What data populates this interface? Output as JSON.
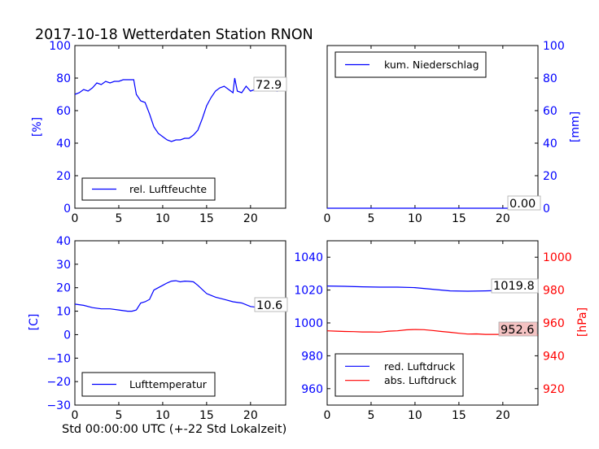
{
  "title": "2017-10-18 Wetterdaten Station RNON",
  "xlabel": "Std 00:00:00 UTC (+-22 Std Lokalzeit)",
  "colors": {
    "blue": "#0000ff",
    "red": "#ff0000",
    "black": "#000000",
    "redbox": "#f4c2c2"
  },
  "chart_data": [
    {
      "type": "line",
      "ylabel": "[%]",
      "xlim": [
        0,
        24
      ],
      "ylim": [
        0,
        100
      ],
      "xticks": [
        "0",
        "5",
        "10",
        "15",
        "20"
      ],
      "yticks": [
        "0",
        "20",
        "40",
        "60",
        "80",
        "100"
      ],
      "legend": {
        "placement": "lower-left",
        "labels": [
          "rel. Luftfeuchte"
        ]
      },
      "last_value_label": "72.9",
      "series": [
        {
          "name": "rel. Luftfeuchte",
          "color": "#0000ff",
          "x": [
            0,
            0.5,
            1,
            1.5,
            2,
            2.5,
            3,
            3.5,
            4,
            4.5,
            5,
            5.5,
            6,
            6.5,
            6.7,
            7,
            7.5,
            8,
            8.5,
            9,
            9.5,
            10,
            10.5,
            11,
            11.5,
            12,
            12.5,
            13,
            13.5,
            14,
            14.5,
            15,
            15.5,
            16,
            16.5,
            17,
            17.5,
            18,
            18.2,
            18.5,
            19,
            19.5,
            20,
            20.5,
            21,
            21.5,
            22,
            22.5,
            23,
            23.5,
            24
          ],
          "y": [
            70,
            71,
            73,
            72,
            74,
            77,
            76,
            78,
            77,
            78,
            78,
            79,
            79,
            79,
            79,
            70,
            66,
            65,
            58,
            50,
            46,
            44,
            42,
            41,
            42,
            42,
            43,
            43,
            45,
            48,
            55,
            63,
            68,
            72,
            74,
            75,
            73,
            71,
            80,
            72,
            71,
            75,
            72,
            73,
            76,
            74,
            73,
            75,
            72,
            73,
            72.9
          ]
        }
      ]
    },
    {
      "type": "line",
      "ylabel": "[mm]",
      "xlim": [
        0,
        24
      ],
      "ylim": [
        0,
        100
      ],
      "xticks": [
        "0",
        "5",
        "10",
        "15",
        "20"
      ],
      "yticks": [
        "0",
        "20",
        "40",
        "60",
        "80",
        "100"
      ],
      "legend": {
        "placement": "upper-left",
        "labels": [
          "kum. Niederschlag"
        ]
      },
      "last_value_label": "0.00",
      "series": [
        {
          "name": "kum. Niederschlag",
          "color": "#0000ff",
          "x": [
            0,
            24
          ],
          "y": [
            0,
            0
          ]
        }
      ]
    },
    {
      "type": "line",
      "ylabel": "[C]",
      "xlim": [
        0,
        24
      ],
      "ylim": [
        -30,
        40
      ],
      "xticks": [
        "0",
        "5",
        "10",
        "15",
        "20"
      ],
      "yticks": [
        "−30",
        "−20",
        "−10",
        "0",
        "10",
        "20",
        "30",
        "40"
      ],
      "legend": {
        "placement": "lower-left",
        "labels": [
          "Lufttemperatur"
        ]
      },
      "last_value_label": "10.6",
      "series": [
        {
          "name": "Lufttemperatur",
          "color": "#0000ff",
          "x": [
            0,
            1,
            2,
            3,
            4,
            5,
            6,
            6.5,
            7,
            7.5,
            8,
            8.5,
            9,
            9.5,
            10,
            10.5,
            11,
            11.5,
            12,
            12.5,
            13,
            13.5,
            14,
            15,
            16,
            17,
            18,
            19,
            20,
            21,
            22,
            23,
            24
          ],
          "y": [
            13,
            12.5,
            11.5,
            11,
            11,
            10.5,
            10,
            10,
            10.5,
            13.5,
            14,
            15,
            19,
            20,
            21,
            22,
            22.8,
            23,
            22.5,
            22.8,
            22.7,
            22.5,
            21,
            17.5,
            16,
            15,
            14,
            13.5,
            12,
            11.5,
            11,
            10.8,
            10.6
          ]
        }
      ]
    },
    {
      "type": "line",
      "ylabel_right": "[hPa]",
      "xlim": [
        0,
        24
      ],
      "ylim_left": [
        950,
        1050
      ],
      "ylim_right": [
        910,
        1010
      ],
      "xticks": [
        "0",
        "5",
        "10",
        "15",
        "20"
      ],
      "yticks_left": [
        "960",
        "980",
        "1000",
        "1020",
        "1040"
      ],
      "yticks_right": [
        "920",
        "940",
        "960",
        "980",
        "1000"
      ],
      "legend": {
        "placement": "lower-left",
        "labels": [
          "red. Luftdruck",
          "abs. Luftdruck"
        ]
      },
      "last_value_labels": [
        "1019.8",
        "952.6"
      ],
      "series": [
        {
          "name": "red. Luftdruck",
          "color": "#0000ff",
          "axis": "left",
          "x": [
            0,
            2,
            4,
            6,
            8,
            10,
            12,
            14,
            16,
            18,
            20,
            22,
            24
          ],
          "y": [
            1022.5,
            1022.3,
            1022,
            1021.8,
            1021.8,
            1021.5,
            1020.5,
            1019.5,
            1019.3,
            1019.5,
            1019.8,
            1019.8,
            1019.8
          ]
        },
        {
          "name": "abs. Luftdruck",
          "color": "#ff0000",
          "axis": "right",
          "x": [
            0,
            1,
            2,
            3,
            4,
            5,
            6,
            7,
            8,
            9,
            10,
            11,
            12,
            13,
            14,
            15,
            16,
            17,
            18,
            19,
            20,
            21,
            22,
            23,
            24
          ],
          "y": [
            955.2,
            955,
            954.8,
            954.7,
            954.5,
            954.5,
            954.4,
            955,
            955.2,
            955.8,
            956,
            955.9,
            955.4,
            954.8,
            954.3,
            953.7,
            953.2,
            953.3,
            953,
            953,
            953,
            952.9,
            952.8,
            952.7,
            952.6
          ]
        }
      ]
    }
  ]
}
